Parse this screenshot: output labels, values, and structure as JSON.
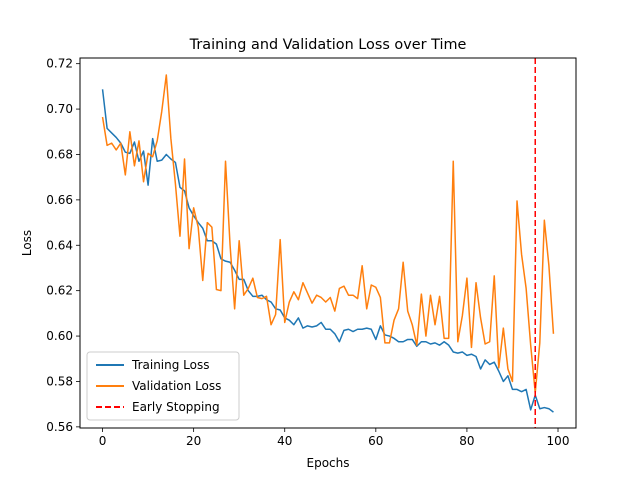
{
  "chart_data": {
    "type": "line",
    "title": "Training and Validation Loss over Time",
    "xlabel": "Epochs",
    "ylabel": "Loss",
    "xlim": [
      -4.95,
      103.95
    ],
    "ylim": [
      0.5595,
      0.7225
    ],
    "xticks": [
      0,
      20,
      40,
      60,
      80,
      100
    ],
    "yticks": [
      0.56,
      0.58,
      0.6,
      0.62,
      0.64,
      0.66,
      0.68,
      0.7,
      0.72
    ],
    "ytick_labels": [
      "0.56",
      "0.58",
      "0.60",
      "0.62",
      "0.64",
      "0.66",
      "0.68",
      "0.70",
      "0.72"
    ],
    "xtick_labels": [
      "0",
      "20",
      "40",
      "60",
      "80",
      "100"
    ],
    "grid": false,
    "legend_position": "lower-left",
    "series": [
      {
        "name": "Training Loss",
        "color": "#1f77b4",
        "values": [
          0.7087,
          0.6915,
          0.6895,
          0.6875,
          0.685,
          0.681,
          0.6805,
          0.6855,
          0.677,
          0.6815,
          0.6665,
          0.687,
          0.677,
          0.6775,
          0.68,
          0.678,
          0.6765,
          0.6655,
          0.664,
          0.6565,
          0.653,
          0.65,
          0.6475,
          0.642,
          0.642,
          0.6405,
          0.634,
          0.633,
          0.6325,
          0.629,
          0.625,
          0.625,
          0.62,
          0.6175,
          0.6175,
          0.618,
          0.616,
          0.615,
          0.612,
          0.6115,
          0.608,
          0.607,
          0.605,
          0.608,
          0.6035,
          0.6045,
          0.604,
          0.6045,
          0.606,
          0.603,
          0.603,
          0.601,
          0.5975,
          0.6025,
          0.603,
          0.602,
          0.603,
          0.603,
          0.6035,
          0.603,
          0.5985,
          0.6045,
          0.6005,
          0.6,
          0.599,
          0.5975,
          0.5975,
          0.5985,
          0.5985,
          0.5955,
          0.5975,
          0.5975,
          0.5965,
          0.597,
          0.596,
          0.5975,
          0.596,
          0.593,
          0.5925,
          0.593,
          0.5915,
          0.592,
          0.591,
          0.5855,
          0.5895,
          0.5875,
          0.5885,
          0.5845,
          0.58,
          0.5825,
          0.5765,
          0.5765,
          0.5755,
          0.5765,
          0.5675,
          0.574,
          0.568,
          0.5685,
          0.568,
          0.5665
        ]
      },
      {
        "name": "Validation Loss",
        "color": "#ff7f0e",
        "values": [
          0.6965,
          0.684,
          0.685,
          0.682,
          0.685,
          0.671,
          0.69,
          0.675,
          0.686,
          0.668,
          0.6805,
          0.679,
          0.686,
          0.699,
          0.715,
          0.687,
          0.667,
          0.644,
          0.678,
          0.6385,
          0.6565,
          0.648,
          0.6245,
          0.65,
          0.648,
          0.6205,
          0.62,
          0.677,
          0.64,
          0.612,
          0.642,
          0.618,
          0.621,
          0.6255,
          0.617,
          0.6165,
          0.6175,
          0.605,
          0.6095,
          0.6425,
          0.606,
          0.615,
          0.6195,
          0.616,
          0.6235,
          0.619,
          0.6145,
          0.618,
          0.617,
          0.615,
          0.617,
          0.611,
          0.621,
          0.622,
          0.618,
          0.618,
          0.6165,
          0.631,
          0.612,
          0.6225,
          0.6215,
          0.617,
          0.597,
          0.597,
          0.607,
          0.612,
          0.6325,
          0.611,
          0.605,
          0.596,
          0.6185,
          0.6,
          0.618,
          0.605,
          0.6175,
          0.599,
          0.599,
          0.677,
          0.5975,
          0.609,
          0.6255,
          0.595,
          0.6235,
          0.608,
          0.5965,
          0.5975,
          0.6265,
          0.586,
          0.6035,
          0.5855,
          0.58,
          0.6595,
          0.636,
          0.621,
          0.596,
          0.575,
          0.597,
          0.651,
          0.631,
          0.601
        ]
      }
    ],
    "annotations": [
      {
        "name": "Early Stopping",
        "type": "vline",
        "x": 95,
        "color": "#ff0000",
        "style": "dashed"
      }
    ]
  }
}
